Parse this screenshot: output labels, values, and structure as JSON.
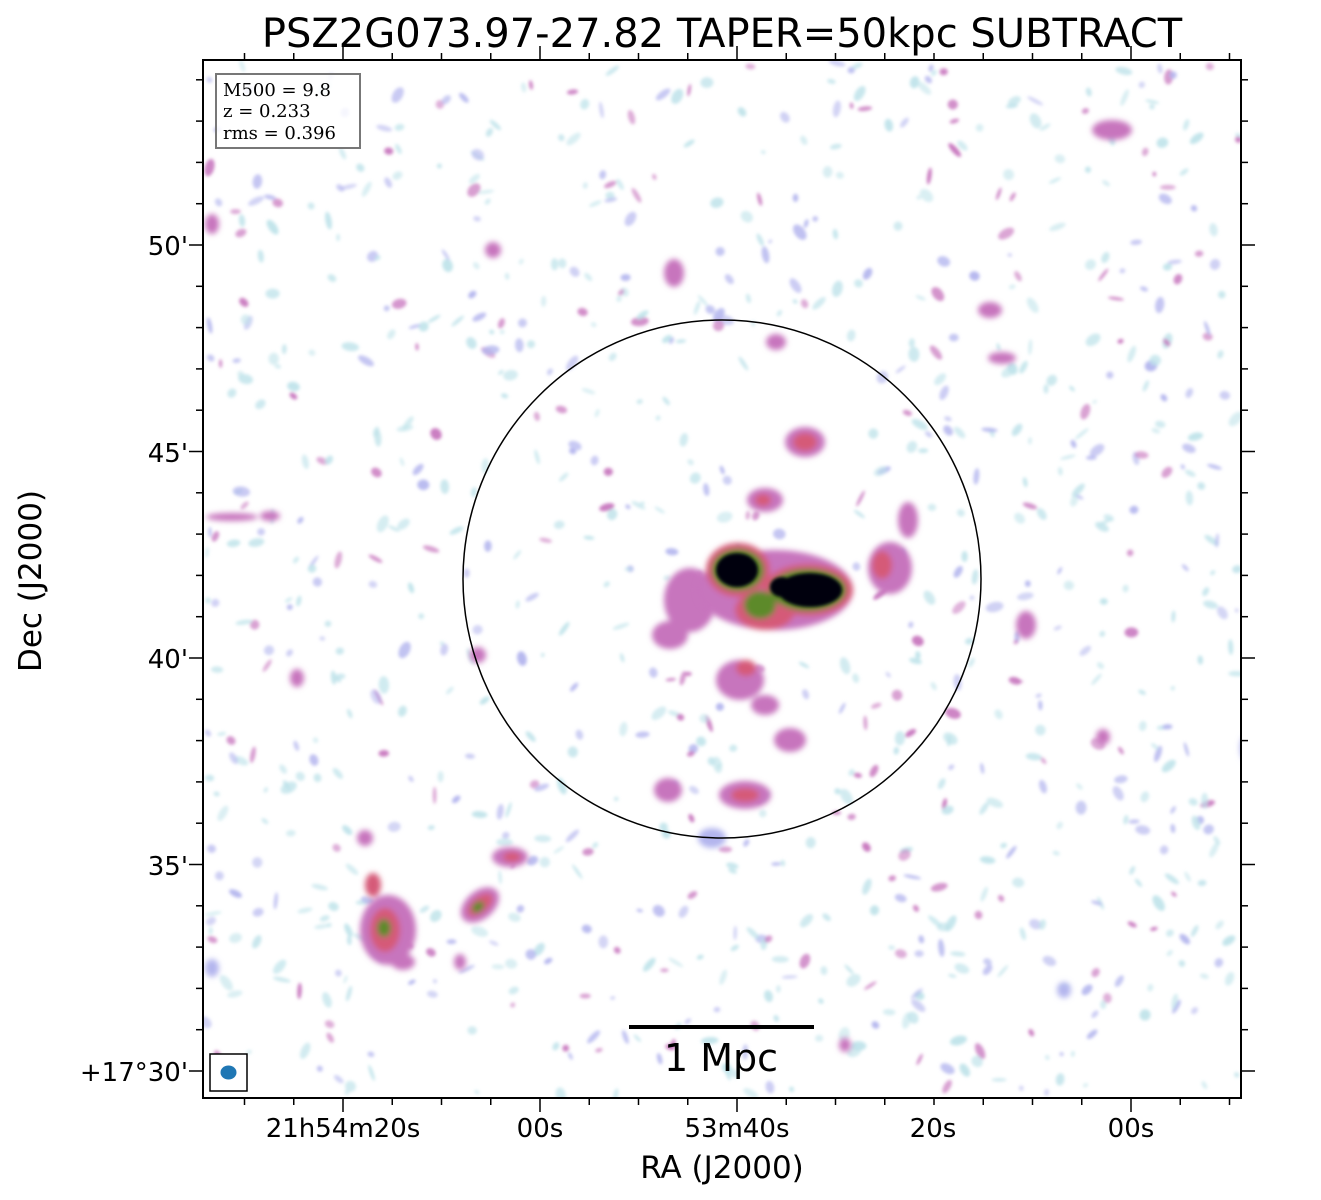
{
  "title": "PSZ2G073.97-27.82 TAPER=50kpc SUBTRACT",
  "axes": {
    "xlabel": "RA (J2000)",
    "ylabel": "Dec (J2000)",
    "x_ticks": [
      "21h54m20s",
      "00s",
      "53m40s",
      "20s",
      "00s"
    ],
    "y_ticks": [
      "50'",
      "45'",
      "40'",
      "35'",
      "+17°30'"
    ]
  },
  "info_box": {
    "line1": "M500 = 9.8",
    "line2": "z = 0.233",
    "line3": "rms = 0.396"
  },
  "scale_bar": {
    "label": "1 Mpc"
  },
  "colors": {
    "faint": "#bfe3ea",
    "low": "#b3b5ee",
    "mid": "#c774bd",
    "high": "#d55a78",
    "green": "#5d8a2c",
    "peak": "#05050f",
    "beam": "#1f77b4"
  }
}
